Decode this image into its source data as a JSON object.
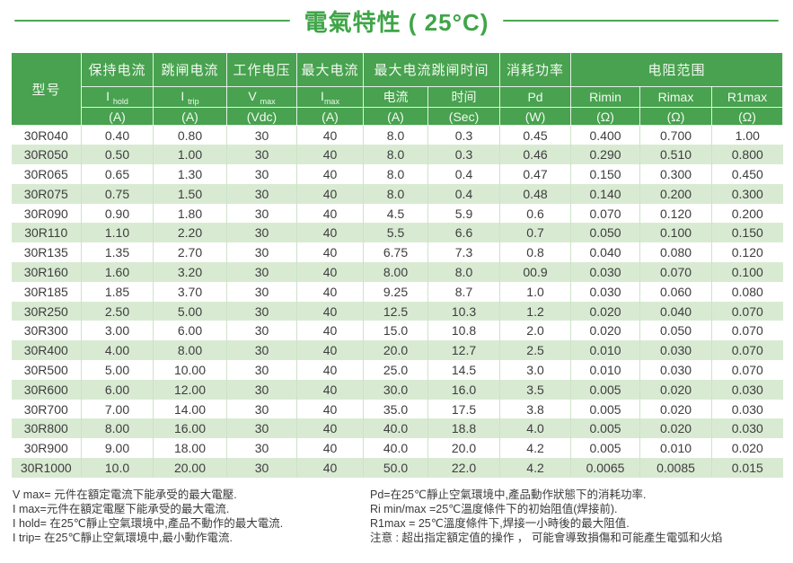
{
  "title": "電氣特性 ( 25°C)",
  "colors": {
    "header_green": "#48a24f",
    "row_alt_green": "#d9ead3",
    "title_green": "#3fa548",
    "text_dark": "#3d3d3d"
  },
  "table": {
    "header": {
      "model_label": "型号",
      "group_hold": "保持电流",
      "group_trip": "跳闸电流",
      "group_voltage": "工作电压",
      "group_max_current": "最大电流",
      "group_trip_time": "最大电流跳闸时间",
      "group_power": "消耗功率",
      "group_resistance": "电阻范围",
      "sym_hold_base": "I",
      "sym_hold_sub": "hold",
      "sym_trip_base": "I",
      "sym_trip_sub": "trip",
      "sym_vmax_base": "V",
      "sym_vmax_sub": "max",
      "sym_imax_base": "I",
      "sym_imax_sub": "max",
      "sym_trip_current": "电流",
      "sym_trip_time": "时间",
      "sym_pd": "Pd",
      "sym_rimin": "Rimin",
      "sym_rimax": "Rimax",
      "sym_r1max": "R1max",
      "unit_hold": "(A)",
      "unit_trip": "(A)",
      "unit_vmax": "(Vdc)",
      "unit_imax": "(A)",
      "unit_trip_current": "(A)",
      "unit_trip_time": "(Sec)",
      "unit_pd": "(W)",
      "unit_rimin": "(Ω)",
      "unit_rimax": "(Ω)",
      "unit_r1max": "(Ω)"
    },
    "column_keys": [
      "model",
      "i-hold",
      "i-trip",
      "v-max",
      "i-max",
      "trip-current",
      "trip-time",
      "pd",
      "ri-min",
      "ri-max",
      "r1-max"
    ],
    "rows": [
      [
        "30R040",
        "0.40",
        "0.80",
        "30",
        "40",
        "8.0",
        "0.3",
        "0.45",
        "0.400",
        "0.700",
        "1.00"
      ],
      [
        "30R050",
        "0.50",
        "1.00",
        "30",
        "40",
        "8.0",
        "0.3",
        "0.46",
        "0.290",
        "0.510",
        "0.800"
      ],
      [
        "30R065",
        "0.65",
        "1.30",
        "30",
        "40",
        "8.0",
        "0.4",
        "0.47",
        "0.150",
        "0.300",
        "0.450"
      ],
      [
        "30R075",
        "0.75",
        "1.50",
        "30",
        "40",
        "8.0",
        "0.4",
        "0.48",
        "0.140",
        "0.200",
        "0.300"
      ],
      [
        "30R090",
        "0.90",
        "1.80",
        "30",
        "40",
        "4.5",
        "5.9",
        "0.6",
        "0.070",
        "0.120",
        "0.200"
      ],
      [
        "30R110",
        "1.10",
        "2.20",
        "30",
        "40",
        "5.5",
        "6.6",
        "0.7",
        "0.050",
        "0.100",
        "0.150"
      ],
      [
        "30R135",
        "1.35",
        "2.70",
        "30",
        "40",
        "6.75",
        "7.3",
        "0.8",
        "0.040",
        "0.080",
        "0.120"
      ],
      [
        "30R160",
        "1.60",
        "3.20",
        "30",
        "40",
        "8.00",
        "8.0",
        "00.9",
        "0.030",
        "0.070",
        "0.100"
      ],
      [
        "30R185",
        "1.85",
        "3.70",
        "30",
        "40",
        "9.25",
        "8.7",
        "1.0",
        "0.030",
        "0.060",
        "0.080"
      ],
      [
        "30R250",
        "2.50",
        "5.00",
        "30",
        "40",
        "12.5",
        "10.3",
        "1.2",
        "0.020",
        "0.040",
        "0.070"
      ],
      [
        "30R300",
        "3.00",
        "6.00",
        "30",
        "40",
        "15.0",
        "10.8",
        "2.0",
        "0.020",
        "0.050",
        "0.070"
      ],
      [
        "30R400",
        "4.00",
        "8.00",
        "30",
        "40",
        "20.0",
        "12.7",
        "2.5",
        "0.010",
        "0.030",
        "0.070"
      ],
      [
        "30R500",
        "5.00",
        "10.00",
        "30",
        "40",
        "25.0",
        "14.5",
        "3.0",
        "0.010",
        "0.030",
        "0.070"
      ],
      [
        "30R600",
        "6.00",
        "12.00",
        "30",
        "40",
        "30.0",
        "16.0",
        "3.5",
        "0.005",
        "0.020",
        "0.030"
      ],
      [
        "30R700",
        "7.00",
        "14.00",
        "30",
        "40",
        "35.0",
        "17.5",
        "3.8",
        "0.005",
        "0.020",
        "0.030"
      ],
      [
        "30R800",
        "8.00",
        "16.00",
        "30",
        "40",
        "40.0",
        "18.8",
        "4.0",
        "0.005",
        "0.020",
        "0.030"
      ],
      [
        "30R900",
        "9.00",
        "18.00",
        "30",
        "40",
        "40.0",
        "20.0",
        "4.2",
        "0.005",
        "0.010",
        "0.020"
      ],
      [
        "30R1000",
        "10.0",
        "20.00",
        "30",
        "40",
        "50.0",
        "22.0",
        "4.2",
        "0.0065",
        "0.0085",
        "0.015"
      ]
    ]
  },
  "footnotes": {
    "left": [
      "V max= 元件在額定電流下能承受的最大電壓.",
      "I max=元件在額定電壓下能承受的最大電流.",
      "I hold= 在25℃靜止空氣環境中,產品不動作的最大電流.",
      "I trip= 在25℃靜止空氣環境中,最小動作電流."
    ],
    "right": [
      "Pd=在25℃靜止空氣環境中,產品動作狀態下的消耗功率.",
      "Ri min/max  =25℃溫度條件下的初始阻值(焊接前).",
      "R1max  = 25℃溫度條件下,焊接一小時後的最大阻值.",
      "注意 : 超出指定額定值的操作 ， 可能會導致損傷和可能產生電弧和火焰"
    ]
  }
}
